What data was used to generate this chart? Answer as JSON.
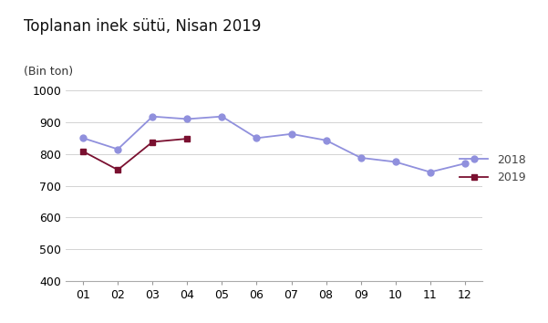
{
  "title": "Toplanan inek sütü, Nisan 2019",
  "ylabel": "(Bin ton)",
  "x_labels": [
    "01",
    "02",
    "03",
    "04",
    "05",
    "06",
    "07",
    "08",
    "09",
    "10",
    "11",
    "12"
  ],
  "series_2018": {
    "label": "2018",
    "values": [
      850,
      815,
      918,
      910,
      918,
      850,
      863,
      843,
      788,
      775,
      743,
      770
    ],
    "color": "#9090dd",
    "marker": "o"
  },
  "series_2019": {
    "label": "2019",
    "values": [
      808,
      750,
      838,
      848,
      null,
      null,
      null,
      null,
      null,
      null,
      null,
      null
    ],
    "color": "#7a1030",
    "marker": "s"
  },
  "ylim": [
    400,
    1000
  ],
  "yticks": [
    400,
    500,
    600,
    700,
    800,
    900,
    1000
  ],
  "background_color": "#ffffff",
  "title_fontsize": 12,
  "axis_fontsize": 9,
  "legend_fontsize": 9
}
